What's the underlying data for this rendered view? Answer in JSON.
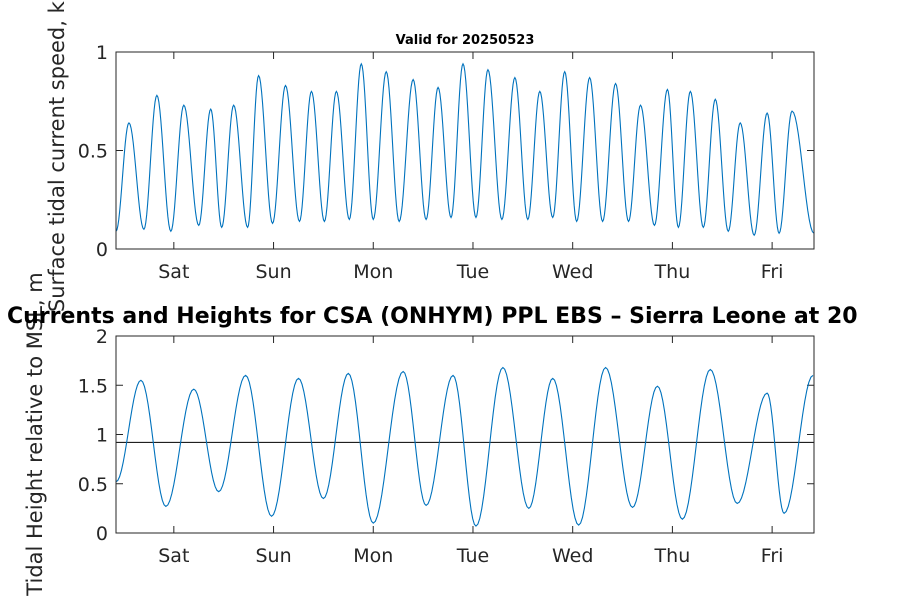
{
  "figure_title": "Currents and Heights for CSA (ONHYM) PPL EBS  – Sierra Leone at 20",
  "colors": {
    "series": "#0072bd",
    "axis": "#262626",
    "reference_line": "#000000",
    "background": "#ffffff"
  },
  "chart_data": [
    {
      "type": "line",
      "title": "Valid for 20250523",
      "ylabel": "Surface tidal current speed, kn",
      "xlabel": "",
      "categories": [
        "Sat",
        "Sun",
        "Mon",
        "Tue",
        "Wed",
        "Thu",
        "Fri"
      ],
      "xlim_days": [
        -0.58,
        6.42
      ],
      "ylim": [
        0,
        1
      ],
      "yticks": [
        0,
        0.5,
        1
      ],
      "ytick_labels": [
        "0",
        "0.5",
        "1"
      ],
      "series": [
        {
          "peak_times_days": [
            -0.45,
            -0.17,
            0.1,
            0.37,
            0.6,
            0.85,
            1.12,
            1.38,
            1.63,
            1.88,
            2.13,
            2.4,
            2.65,
            2.9,
            3.15,
            3.42,
            3.67,
            3.92,
            4.17,
            4.43,
            4.68,
            4.95,
            5.18,
            5.43,
            5.68,
            5.95,
            6.2
          ],
          "peak_values": [
            0.64,
            0.78,
            0.73,
            0.71,
            0.73,
            0.88,
            0.83,
            0.8,
            0.8,
            0.94,
            0.9,
            0.86,
            0.82,
            0.94,
            0.91,
            0.87,
            0.8,
            0.9,
            0.87,
            0.84,
            0.73,
            0.81,
            0.8,
            0.76,
            0.64,
            0.69,
            0.7
          ],
          "trough_times_days": [
            -0.58,
            -0.3,
            -0.03,
            0.25,
            0.48,
            0.74,
            0.99,
            1.26,
            1.51,
            1.76,
            2.0,
            2.26,
            2.53,
            2.78,
            3.03,
            3.29,
            3.55,
            3.8,
            4.04,
            4.3,
            4.56,
            4.82,
            5.06,
            5.31,
            5.56,
            5.82,
            6.07,
            6.42
          ],
          "trough_values": [
            0.09,
            0.1,
            0.09,
            0.12,
            0.11,
            0.11,
            0.13,
            0.14,
            0.14,
            0.15,
            0.15,
            0.14,
            0.15,
            0.16,
            0.16,
            0.15,
            0.15,
            0.16,
            0.14,
            0.14,
            0.14,
            0.12,
            0.11,
            0.11,
            0.09,
            0.07,
            0.08,
            0.08
          ]
        }
      ]
    },
    {
      "type": "line",
      "title": "",
      "ylabel": "Tidal Height relative to MSL, m",
      "xlabel": "",
      "categories": [
        "Sat",
        "Sun",
        "Mon",
        "Tue",
        "Wed",
        "Thu",
        "Fri"
      ],
      "xlim_days": [
        -0.58,
        6.42
      ],
      "ylim": [
        0,
        2
      ],
      "yticks": [
        0,
        0.5,
        1,
        1.5,
        2
      ],
      "ytick_labels": [
        "0",
        "0.5",
        "1",
        "1.5",
        "2"
      ],
      "reference_line_y": 0.92,
      "series": [
        {
          "high_times_days": [
            -0.33,
            0.2,
            0.72,
            1.25,
            1.75,
            2.3,
            2.8,
            3.3,
            3.8,
            4.33,
            4.85,
            5.38,
            5.95,
            6.41
          ],
          "high_values": [
            1.55,
            1.46,
            1.6,
            1.57,
            1.62,
            1.64,
            1.6,
            1.68,
            1.57,
            1.68,
            1.49,
            1.66,
            1.42,
            1.6
          ],
          "low_times_days": [
            -0.58,
            -0.08,
            0.45,
            0.98,
            1.5,
            2.0,
            2.53,
            3.03,
            3.56,
            4.06,
            4.6,
            5.1,
            5.65,
            6.12
          ],
          "low_values": [
            0.52,
            0.27,
            0.42,
            0.17,
            0.35,
            0.1,
            0.28,
            0.07,
            0.25,
            0.08,
            0.26,
            0.14,
            0.3,
            0.2
          ]
        }
      ]
    }
  ]
}
